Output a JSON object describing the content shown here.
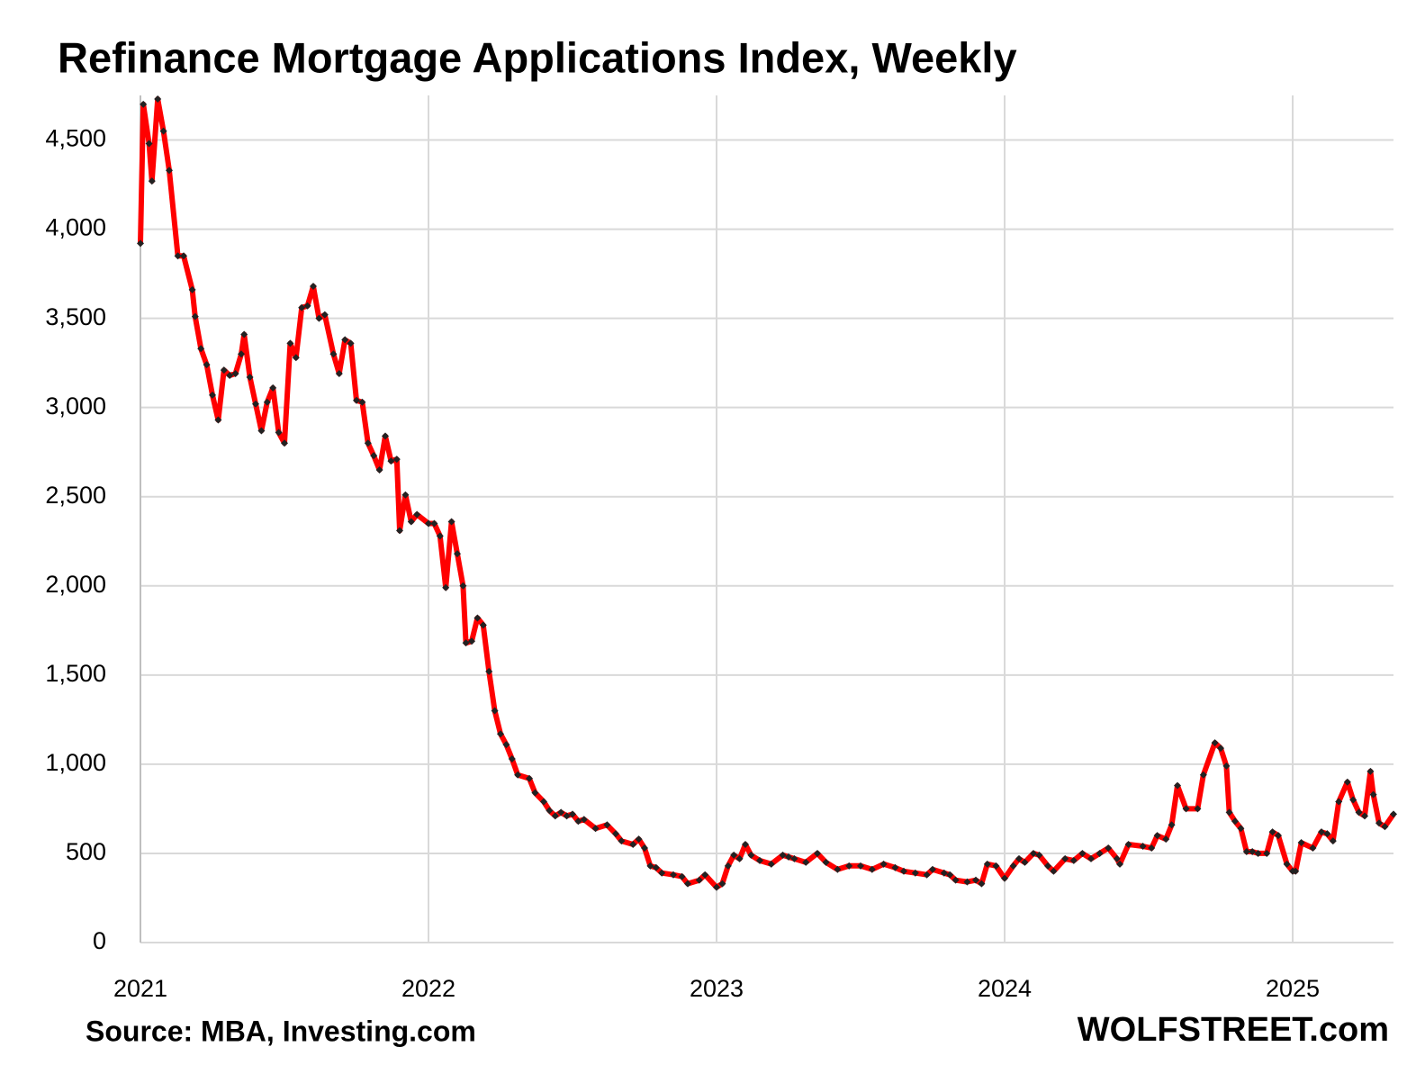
{
  "chart_data": {
    "type": "line",
    "title": "Refinance Mortgage Applications Index, Weekly",
    "source": "Source: MBA, Investing.com",
    "brand": "WOLFSTREET.com",
    "color": "#ff0000",
    "marker_color": "#222222",
    "grid": true,
    "xlim": [
      2021,
      2025.35
    ],
    "xticks": [
      2021,
      2022,
      2023,
      2024,
      2025
    ],
    "ylim": [
      0,
      4750
    ],
    "yticks": [
      0,
      500,
      {
        "value": 1000,
        "label": "1,000"
      },
      {
        "value": 1500,
        "label": "1,500"
      },
      {
        "value": 2000,
        "label": "2,000"
      },
      {
        "value": 2500,
        "label": "2,500"
      },
      {
        "value": 3000,
        "label": "3,000"
      },
      {
        "value": 3500,
        "label": "3,500"
      },
      {
        "value": 4000,
        "label": "4,000"
      },
      {
        "value": 4500,
        "label": "4,500"
      }
    ],
    "x": [
      2021.0,
      2021.01,
      2021.03,
      2021.04,
      2021.06,
      2021.08,
      2021.1,
      2021.13,
      2021.15,
      2021.18,
      2021.19,
      2021.21,
      2021.23,
      2021.25,
      2021.27,
      2021.29,
      2021.31,
      2021.33,
      2021.35,
      2021.36,
      2021.38,
      2021.4,
      2021.42,
      2021.44,
      2021.46,
      2021.48,
      2021.5,
      2021.52,
      2021.54,
      2021.56,
      2021.58,
      2021.6,
      2021.62,
      2021.64,
      2021.67,
      2021.69,
      2021.71,
      2021.73,
      2021.75,
      2021.77,
      2021.79,
      2021.81,
      2021.83,
      2021.85,
      2021.87,
      2021.89,
      2021.9,
      2021.92,
      2021.94,
      2021.96,
      2022.0,
      2022.02,
      2022.04,
      2022.06,
      2022.08,
      2022.1,
      2022.12,
      2022.13,
      2022.15,
      2022.17,
      2022.19,
      2022.21,
      2022.23,
      2022.25,
      2022.27,
      2022.29,
      2022.31,
      2022.35,
      2022.37,
      2022.4,
      2022.42,
      2022.44,
      2022.46,
      2022.48,
      2022.5,
      2022.52,
      2022.54,
      2022.58,
      2022.62,
      2022.65,
      2022.67,
      2022.71,
      2022.73,
      2022.75,
      2022.77,
      2022.79,
      2022.81,
      2022.85,
      2022.88,
      2022.9,
      2022.94,
      2022.96,
      2023.0,
      2023.02,
      2023.04,
      2023.06,
      2023.08,
      2023.1,
      2023.12,
      2023.15,
      2023.19,
      2023.23,
      2023.25,
      2023.27,
      2023.31,
      2023.35,
      2023.38,
      2023.42,
      2023.46,
      2023.5,
      2023.54,
      2023.58,
      2023.62,
      2023.65,
      2023.69,
      2023.73,
      2023.75,
      2023.79,
      2023.81,
      2023.83,
      2023.87,
      2023.9,
      2023.92,
      2023.94,
      2023.97,
      2024.0,
      2024.03,
      2024.05,
      2024.07,
      2024.1,
      2024.12,
      2024.15,
      2024.17,
      2024.21,
      2024.24,
      2024.27,
      2024.3,
      2024.33,
      2024.36,
      2024.39,
      2024.4,
      2024.43,
      2024.48,
      2024.51,
      2024.53,
      2024.56,
      2024.58,
      2024.6,
      2024.63,
      2024.67,
      2024.69,
      2024.73,
      2024.75,
      2024.77,
      2024.78,
      2024.8,
      2024.82,
      2024.84,
      2024.86,
      2024.88,
      2024.91,
      2024.93,
      2024.95,
      2024.98,
      2025.0,
      2025.01,
      2025.03,
      2025.07,
      2025.1,
      2025.12,
      2025.14,
      2025.16,
      2025.19,
      2025.21,
      2025.23,
      2025.25,
      2025.27,
      2025.28,
      2025.3,
      2025.32,
      2025.35
    ],
    "values": [
      3920,
      4700,
      4480,
      4270,
      4730,
      4550,
      4330,
      3850,
      3850,
      3660,
      3510,
      3330,
      3240,
      3070,
      2930,
      3210,
      3180,
      3190,
      3300,
      3410,
      3170,
      3020,
      2870,
      3030,
      3110,
      2860,
      2800,
      3360,
      3280,
      3560,
      3570,
      3680,
      3500,
      3520,
      3300,
      3190,
      3380,
      3360,
      3040,
      3030,
      2800,
      2730,
      2650,
      2840,
      2700,
      2710,
      2310,
      2510,
      2360,
      2400,
      2350,
      2350,
      2280,
      1990,
      2360,
      2180,
      2000,
      1680,
      1690,
      1820,
      1780,
      1520,
      1300,
      1170,
      1110,
      1030,
      940,
      920,
      840,
      790,
      740,
      710,
      730,
      710,
      720,
      680,
      690,
      640,
      660,
      610,
      570,
      550,
      580,
      530,
      430,
      420,
      390,
      380,
      370,
      330,
      350,
      380,
      310,
      330,
      430,
      490,
      470,
      550,
      490,
      460,
      440,
      490,
      480,
      470,
      450,
      500,
      450,
      410,
      430,
      430,
      410,
      440,
      420,
      400,
      390,
      380,
      410,
      390,
      380,
      350,
      340,
      350,
      330,
      440,
      430,
      360,
      430,
      470,
      450,
      500,
      490,
      430,
      400,
      470,
      460,
      500,
      470,
      500,
      530,
      470,
      440,
      550,
      540,
      530,
      600,
      580,
      660,
      880,
      750,
      750,
      940,
      1120,
      1090,
      990,
      730,
      680,
      640,
      510,
      510,
      500,
      500,
      620,
      600,
      440,
      400,
      400,
      560,
      530,
      620,
      610,
      570,
      790,
      900,
      800,
      730,
      710,
      960,
      830,
      670,
      650,
      720
    ]
  }
}
